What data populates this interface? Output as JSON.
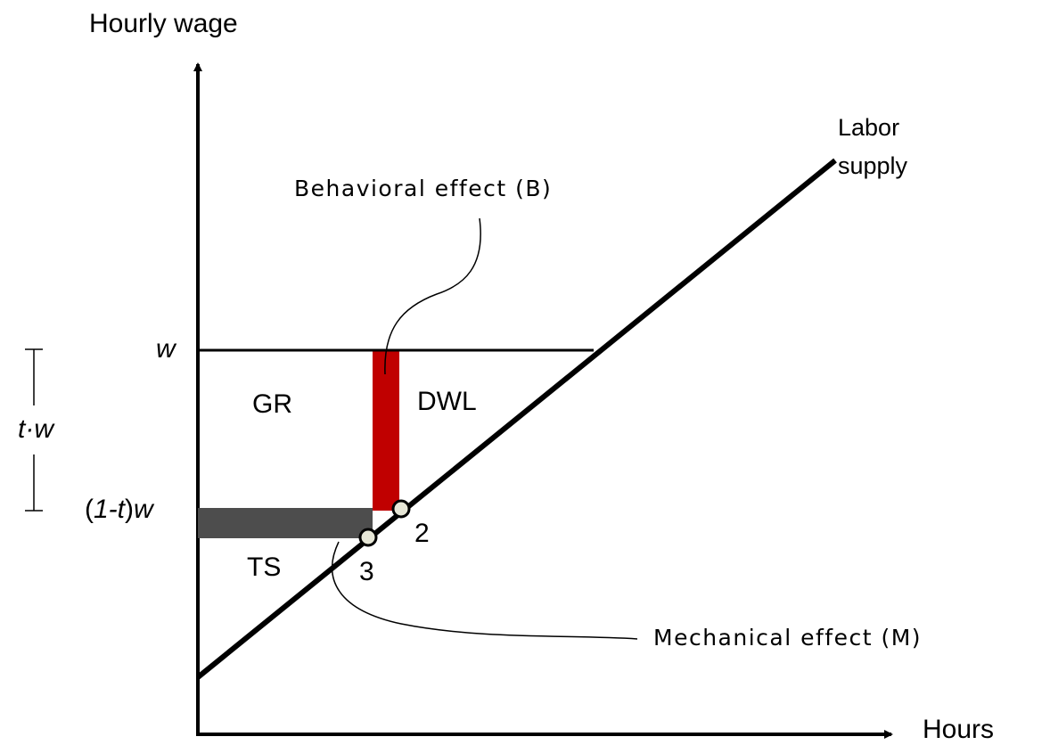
{
  "axes": {
    "y_label": "Hourly wage",
    "x_label": "Hours"
  },
  "curve": {
    "label_line1": "Labor",
    "label_line2": "supply"
  },
  "annotations": {
    "behavioral": "Behavioral effect (B)",
    "mechanical": "Mechanical effect (M)"
  },
  "levels": {
    "w": "w",
    "tax_gap": "t·w",
    "net_wage": {
      "open": "(",
      "rate": "1-t",
      "close": ")",
      "wage": "w"
    }
  },
  "regions": {
    "gr": "GR",
    "dwl": "DWL",
    "ts": "TS"
  },
  "points": {
    "p2": "2",
    "p3": "3"
  }
}
